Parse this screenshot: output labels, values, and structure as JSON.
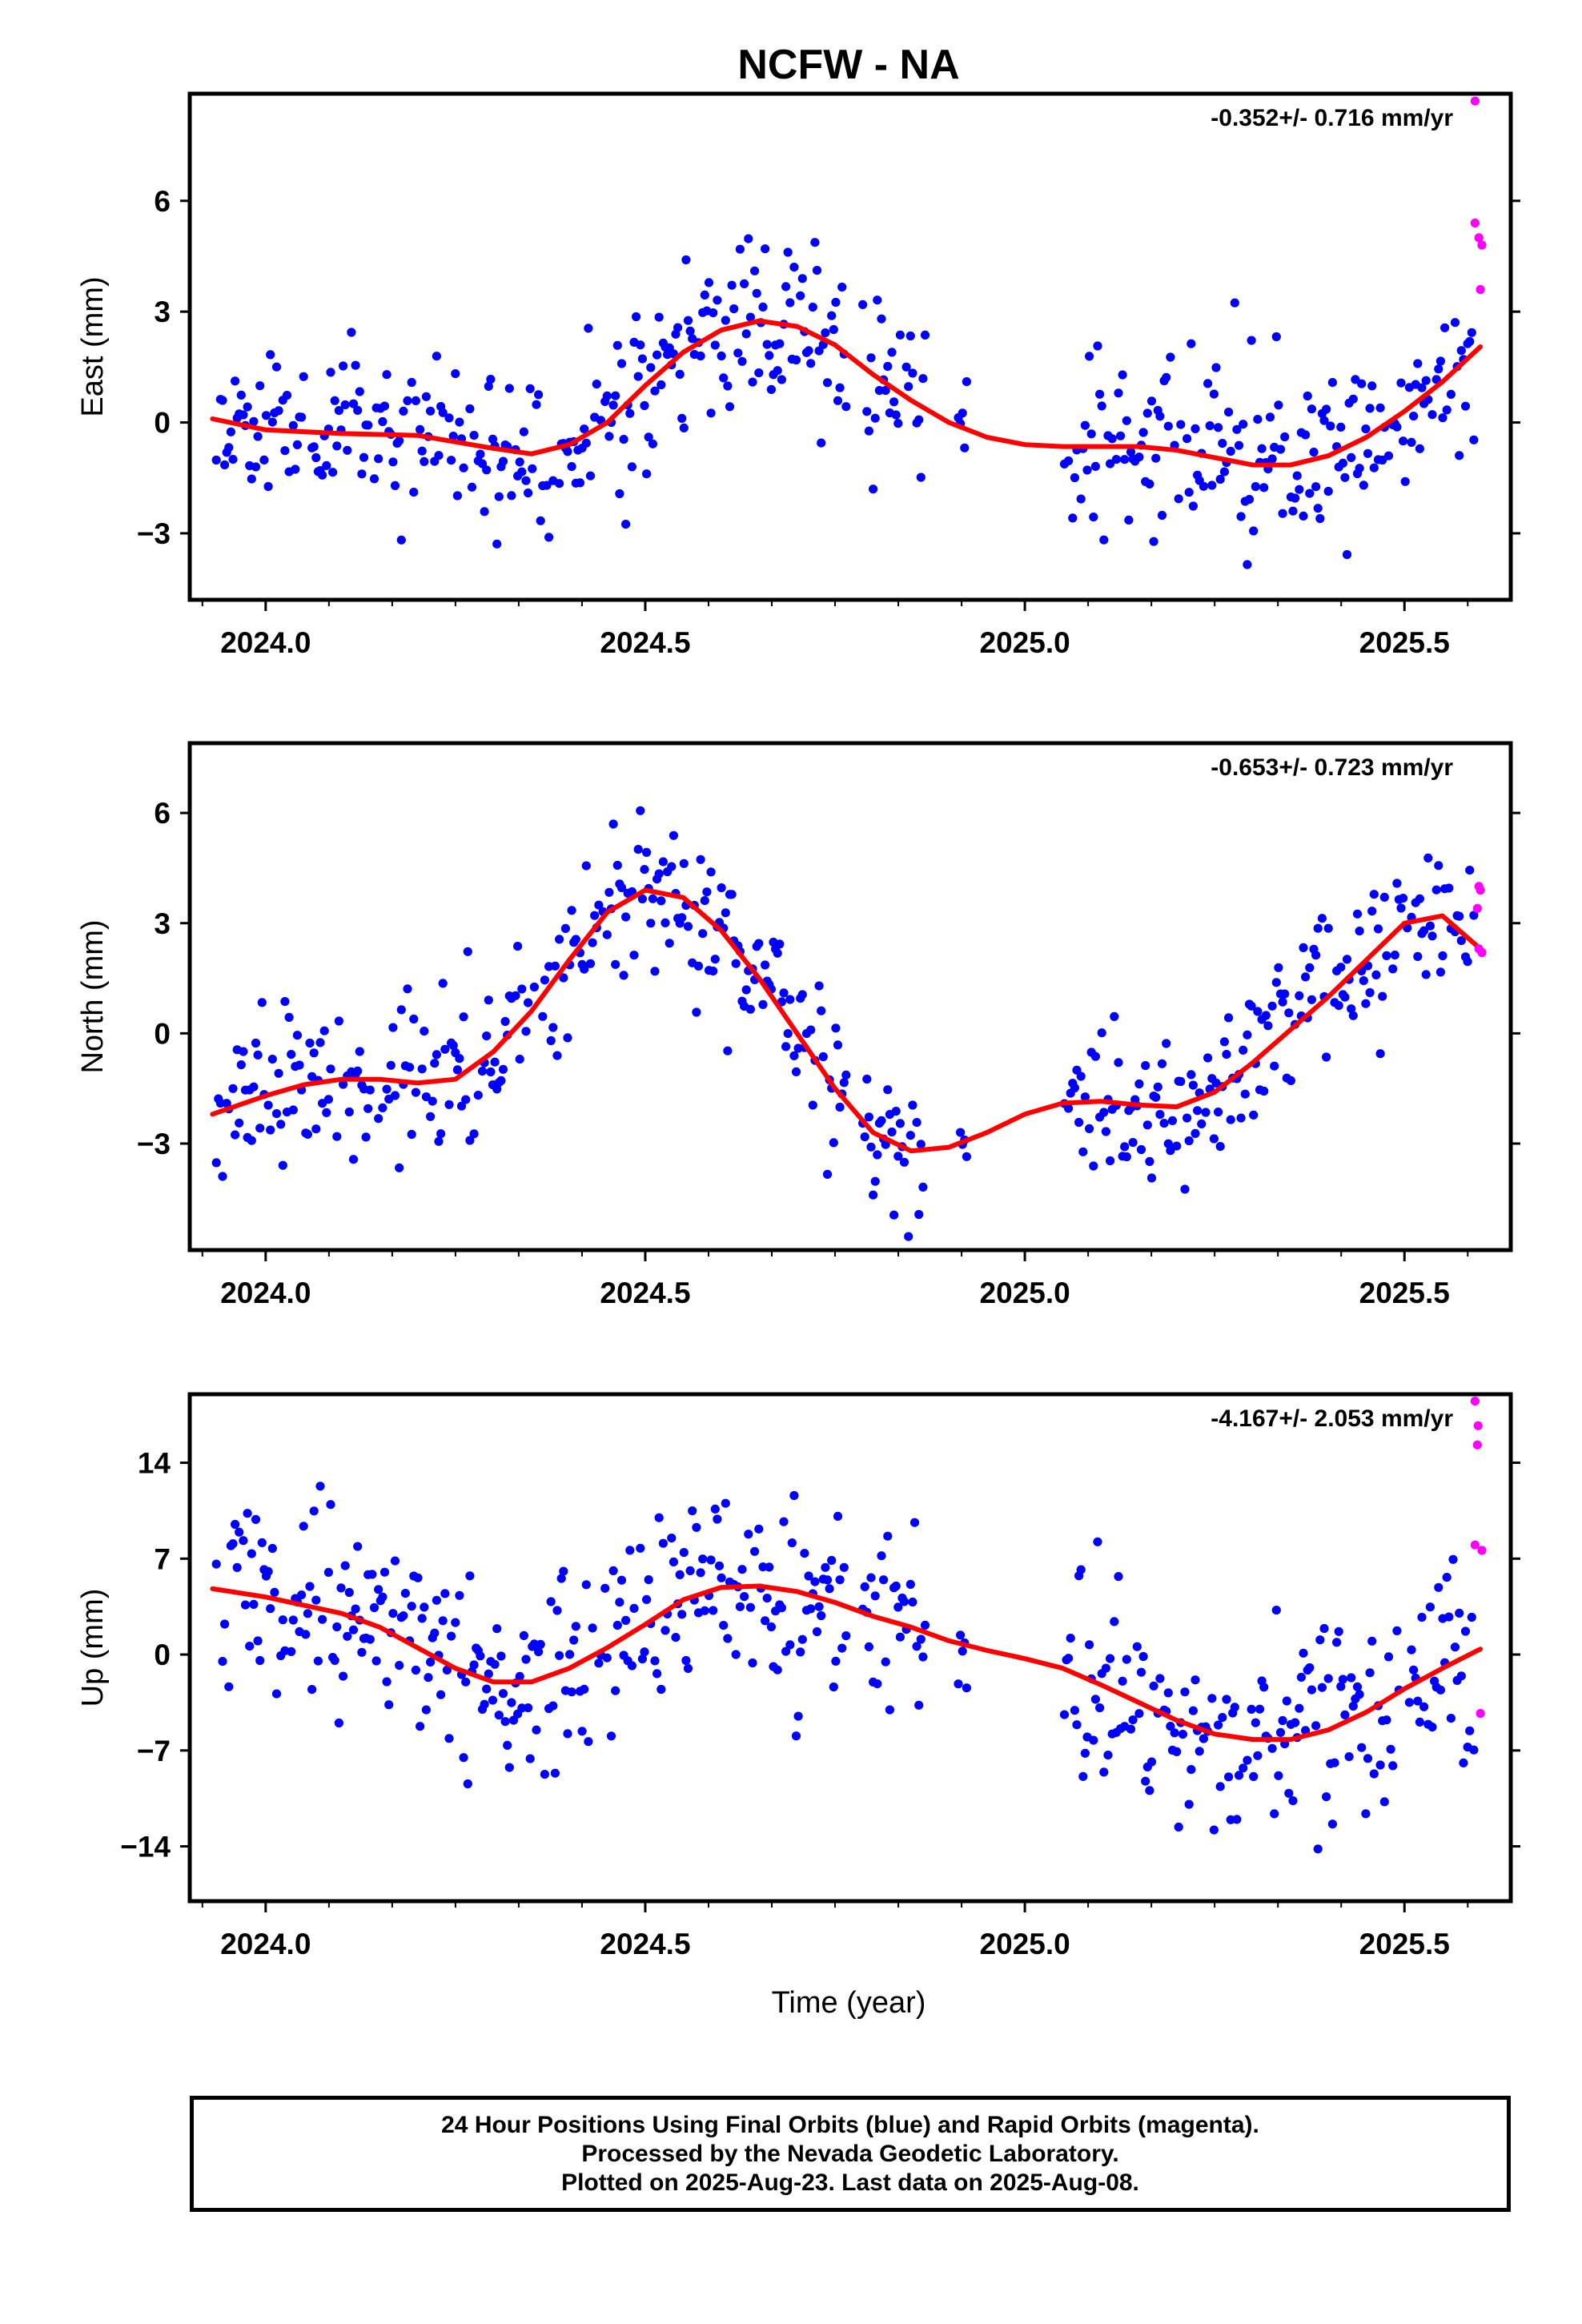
{
  "figure": {
    "title": "NCFW - NA",
    "xlabel": "Time (year)",
    "x_ticks": [
      "2024.0",
      "2024.5",
      "2025.0",
      "2025.5"
    ],
    "colors": {
      "final": "#0000ff",
      "rapid": "#ff00ff",
      "fit": "#ff0000",
      "frame": "#000000"
    }
  },
  "chart_data": [
    {
      "type": "scatter",
      "id": "east",
      "ylabel": "East (mm)",
      "rate": "-0.352+/- 0.716 mm/yr",
      "xlim": [
        2023.9,
        2025.64
      ],
      "ylim": [
        -4.8,
        8.9
      ],
      "yticks": [
        -3,
        0,
        3,
        6
      ],
      "xticks": [
        2024.0,
        2024.5,
        2025.0,
        2025.5
      ],
      "fit": [
        [
          2023.93,
          0.1
        ],
        [
          2024.0,
          -0.2
        ],
        [
          2024.1,
          -0.3
        ],
        [
          2024.2,
          -0.35
        ],
        [
          2024.3,
          -0.7
        ],
        [
          2024.35,
          -0.85
        ],
        [
          2024.4,
          -0.6
        ],
        [
          2024.45,
          0.0
        ],
        [
          2024.5,
          1.0
        ],
        [
          2024.55,
          1.9
        ],
        [
          2024.6,
          2.5
        ],
        [
          2024.65,
          2.75
        ],
        [
          2024.7,
          2.6
        ],
        [
          2024.75,
          2.1
        ],
        [
          2024.8,
          1.3
        ],
        [
          2024.85,
          0.6
        ],
        [
          2024.9,
          0.0
        ],
        [
          2024.95,
          -0.4
        ],
        [
          2025.0,
          -0.6
        ],
        [
          2025.05,
          -0.65
        ],
        [
          2025.1,
          -0.65
        ],
        [
          2025.15,
          -0.65
        ],
        [
          2025.2,
          -0.75
        ],
        [
          2025.25,
          -0.95
        ],
        [
          2025.3,
          -1.15
        ],
        [
          2025.35,
          -1.15
        ],
        [
          2025.4,
          -0.9
        ],
        [
          2025.45,
          -0.4
        ],
        [
          2025.5,
          0.3
        ],
        [
          2025.55,
          1.1
        ],
        [
          2025.6,
          2.05
        ]
      ],
      "rapid": [
        [
          2025.593,
          8.7
        ],
        [
          2025.593,
          5.4
        ],
        [
          2025.598,
          5.0
        ],
        [
          2025.602,
          4.8
        ],
        [
          2025.6,
          3.6
        ]
      ]
    },
    {
      "type": "scatter",
      "id": "north",
      "ylabel": "North (mm)",
      "rate": "-0.653+/- 0.723 mm/yr",
      "xlim": [
        2023.9,
        2025.64
      ],
      "ylim": [
        -5.9,
        7.9
      ],
      "yticks": [
        -3,
        0,
        3,
        6
      ],
      "xticks": [
        2024.0,
        2024.5,
        2025.0,
        2025.5
      ],
      "fit": [
        [
          2023.93,
          -2.2
        ],
        [
          2024.0,
          -1.7
        ],
        [
          2024.05,
          -1.4
        ],
        [
          2024.1,
          -1.25
        ],
        [
          2024.15,
          -1.25
        ],
        [
          2024.2,
          -1.35
        ],
        [
          2024.25,
          -1.25
        ],
        [
          2024.3,
          -0.5
        ],
        [
          2024.35,
          0.6
        ],
        [
          2024.4,
          2.0
        ],
        [
          2024.45,
          3.3
        ],
        [
          2024.5,
          3.9
        ],
        [
          2024.55,
          3.7
        ],
        [
          2024.6,
          2.8
        ],
        [
          2024.65,
          1.5
        ],
        [
          2024.7,
          0.0
        ],
        [
          2024.75,
          -1.5
        ],
        [
          2024.8,
          -2.7
        ],
        [
          2024.85,
          -3.2
        ],
        [
          2024.9,
          -3.1
        ],
        [
          2024.95,
          -2.7
        ],
        [
          2025.0,
          -2.2
        ],
        [
          2025.05,
          -1.9
        ],
        [
          2025.1,
          -1.85
        ],
        [
          2025.15,
          -1.95
        ],
        [
          2025.2,
          -2.0
        ],
        [
          2025.25,
          -1.6
        ],
        [
          2025.3,
          -0.8
        ],
        [
          2025.35,
          0.1
        ],
        [
          2025.4,
          1.0
        ],
        [
          2025.45,
          2.0
        ],
        [
          2025.5,
          3.0
        ],
        [
          2025.55,
          3.2
        ],
        [
          2025.6,
          2.3
        ]
      ],
      "rapid": [
        [
          2025.598,
          4.0
        ],
        [
          2025.6,
          3.9
        ],
        [
          2025.596,
          3.4
        ],
        [
          2025.598,
          2.3
        ],
        [
          2025.602,
          2.2
        ]
      ]
    },
    {
      "type": "scatter",
      "id": "up",
      "ylabel": "Up (mm)",
      "rate": "-4.167+/- 2.053 mm/yr",
      "xlim": [
        2023.9,
        2025.64
      ],
      "ylim": [
        -18.0,
        19.0
      ],
      "yticks": [
        -14,
        -7,
        0,
        7,
        14
      ],
      "xticks": [
        2024.0,
        2024.5,
        2025.0,
        2025.5
      ],
      "fit": [
        [
          2023.93,
          4.8
        ],
        [
          2024.0,
          4.2
        ],
        [
          2024.1,
          3.0
        ],
        [
          2024.15,
          2.0
        ],
        [
          2024.2,
          0.5
        ],
        [
          2024.25,
          -1.0
        ],
        [
          2024.3,
          -2.0
        ],
        [
          2024.35,
          -2.0
        ],
        [
          2024.4,
          -1.0
        ],
        [
          2024.45,
          0.5
        ],
        [
          2024.5,
          2.2
        ],
        [
          2024.55,
          4.0
        ],
        [
          2024.6,
          4.9
        ],
        [
          2024.65,
          5.0
        ],
        [
          2024.7,
          4.6
        ],
        [
          2024.75,
          3.8
        ],
        [
          2024.8,
          2.8
        ],
        [
          2024.85,
          2.0
        ],
        [
          2024.9,
          1.0
        ],
        [
          2024.95,
          0.3
        ],
        [
          2025.0,
          -0.3
        ],
        [
          2025.05,
          -1.0
        ],
        [
          2025.1,
          -2.2
        ],
        [
          2025.15,
          -3.5
        ],
        [
          2025.2,
          -4.8
        ],
        [
          2025.25,
          -5.8
        ],
        [
          2025.3,
          -6.2
        ],
        [
          2025.35,
          -6.2
        ],
        [
          2025.4,
          -5.5
        ],
        [
          2025.45,
          -4.2
        ],
        [
          2025.5,
          -2.5
        ],
        [
          2025.55,
          -1.0
        ],
        [
          2025.6,
          0.4
        ]
      ],
      "rapid": [
        [
          2025.593,
          18.5
        ],
        [
          2025.597,
          16.7
        ],
        [
          2025.596,
          15.3
        ],
        [
          2025.593,
          8.0
        ],
        [
          2025.602,
          7.6
        ],
        [
          2025.6,
          -4.3
        ]
      ]
    }
  ],
  "footer": {
    "line1": "24 Hour Positions Using Final Orbits (blue) and Rapid Orbits (magenta).",
    "line2": "Processed by the Nevada Geodetic Laboratory.",
    "line3": "Plotted on 2025-Aug-23. Last data on 2025-Aug-08."
  }
}
